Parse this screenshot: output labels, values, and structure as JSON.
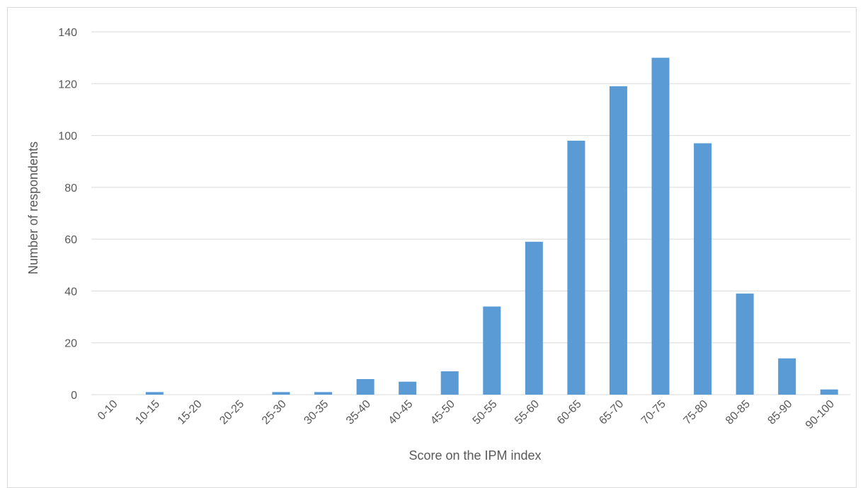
{
  "chart_data": {
    "type": "bar",
    "title": "",
    "xlabel": "Score on the IPM index",
    "ylabel": "Number of respondents",
    "categories": [
      "0-10",
      "10-15",
      "15-20",
      "20-25",
      "25-30",
      "30-35",
      "35-40",
      "40-45",
      "45-50",
      "50-55",
      "55-60",
      "60-65",
      "65-70",
      "70-75",
      "75-80",
      "80-85",
      "85-90",
      "90-100"
    ],
    "values": [
      0,
      1,
      0,
      0,
      1,
      1,
      6,
      5,
      9,
      34,
      59,
      98,
      119,
      130,
      97,
      39,
      14,
      2
    ],
    "ylim": [
      0,
      140
    ],
    "yticks": [
      0,
      20,
      40,
      60,
      80,
      100,
      120,
      140
    ],
    "grid": true,
    "legend": "none",
    "bar_color": "#5b9bd5",
    "grid_color": "#d9d9d9",
    "text_color": "#595959"
  }
}
